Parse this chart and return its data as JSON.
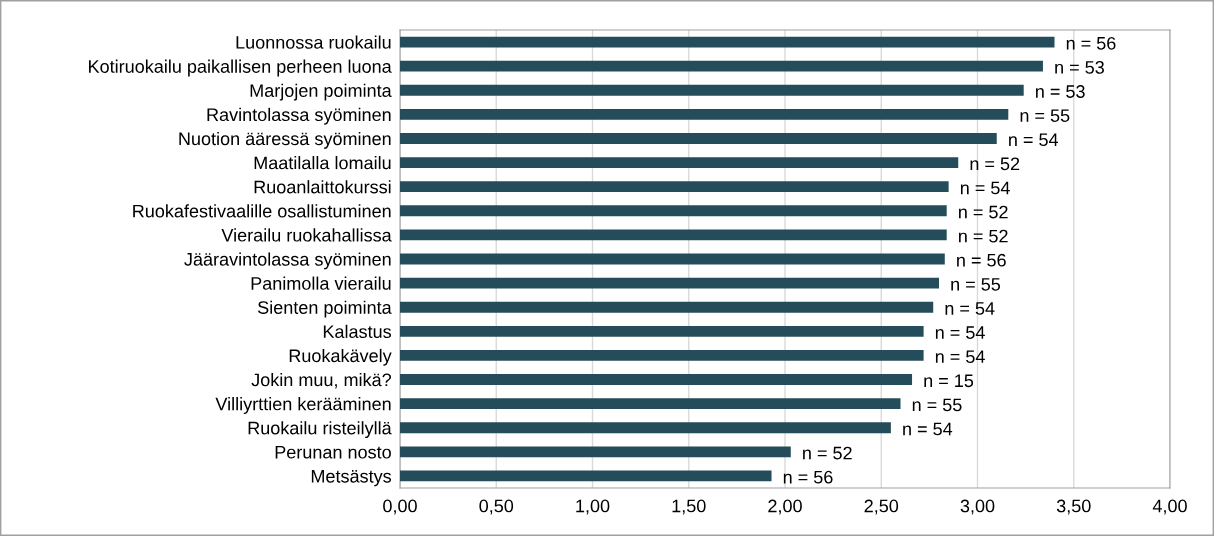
{
  "chart_data": {
    "type": "bar",
    "orientation": "horizontal",
    "categories": [
      "Luonnossa ruokailu",
      "Kotiruokailu paikallisen perheen luona",
      "Marjojen poiminta",
      "Ravintolassa syöminen",
      "Nuotion ääressä syöminen",
      "Maatilalla lomailu",
      "Ruoanlaittokurssi",
      "Ruokafestivaalille osallistuminen",
      "Vierailu ruokahallissa",
      "Jääravintolassa syöminen",
      "Panimolla vierailu",
      "Sienten poiminta",
      "Kalastus",
      "Ruokakävely",
      "Jokin muu, mikä?",
      "Villiyrttien kerääminen",
      "Ruokailu risteilyllä",
      "Perunan nosto",
      "Metsästys"
    ],
    "values": [
      3.4,
      3.34,
      3.24,
      3.16,
      3.1,
      2.9,
      2.85,
      2.84,
      2.84,
      2.83,
      2.8,
      2.77,
      2.72,
      2.72,
      2.66,
      2.6,
      2.55,
      2.03,
      1.93
    ],
    "annotations": [
      {
        "text": "n = 56",
        "x": 3.4,
        "y": "Luonnossa ruokailu"
      },
      {
        "text": "n = 53",
        "x": 3.34,
        "y": "Kotiruokailu paikallisen perheen luona"
      },
      {
        "text": "n = 53",
        "x": 3.24,
        "y": "Marjojen poiminta"
      },
      {
        "text": "n = 55",
        "x": 3.16,
        "y": "Ravintolassa syöminen"
      },
      {
        "text": "n = 54",
        "x": 3.1,
        "y": "Nuotion ääressä syöminen"
      },
      {
        "text": "n = 52",
        "x": 2.9,
        "y": "Maatilalla lomailu"
      },
      {
        "text": "n = 54",
        "x": 2.85,
        "y": "Ruoanlaittokurssi"
      },
      {
        "text": "n = 52",
        "x": 2.84,
        "y": "Ruokafestivaalille osallistuminen"
      },
      {
        "text": "n = 52",
        "x": 2.84,
        "y": "Vierailu ruokahallissa"
      },
      {
        "text": "n = 56",
        "x": 2.83,
        "y": "Jääravintolassa syöminen"
      },
      {
        "text": "n = 55",
        "x": 2.8,
        "y": "Panimolla vierailu"
      },
      {
        "text": "n = 54",
        "x": 2.77,
        "y": "Sienten poiminta"
      },
      {
        "text": "n = 54",
        "x": 2.72,
        "y": "Kalastus"
      },
      {
        "text": "n = 54",
        "x": 2.72,
        "y": "Ruokakävely"
      },
      {
        "text": "n = 15",
        "x": 2.66,
        "y": "Jokin muu, mikä?"
      },
      {
        "text": "n = 55",
        "x": 2.6,
        "y": "Villiyrttien kerääminen"
      },
      {
        "text": "n = 54",
        "x": 2.55,
        "y": "Ruokailu risteilyllä"
      },
      {
        "text": "n = 52",
        "x": 2.03,
        "y": "Perunan nosto"
      },
      {
        "text": "n = 56",
        "x": 1.93,
        "y": "Metsästys"
      }
    ],
    "color": "#244c5a",
    "xlim": [
      0,
      4
    ],
    "xticks": [
      {
        "value": 0,
        "label": "0,00"
      },
      {
        "value": 0.5,
        "label": "0,50"
      },
      {
        "value": 1,
        "label": "1,00"
      },
      {
        "value": 1.5,
        "label": "1,50"
      },
      {
        "value": 2,
        "label": "2,00"
      },
      {
        "value": 2.5,
        "label": "2,50"
      },
      {
        "value": 3,
        "label": "3,00"
      },
      {
        "value": 3.5,
        "label": "3,50"
      },
      {
        "value": 4,
        "label": "4,00"
      }
    ],
    "grid": "x"
  }
}
